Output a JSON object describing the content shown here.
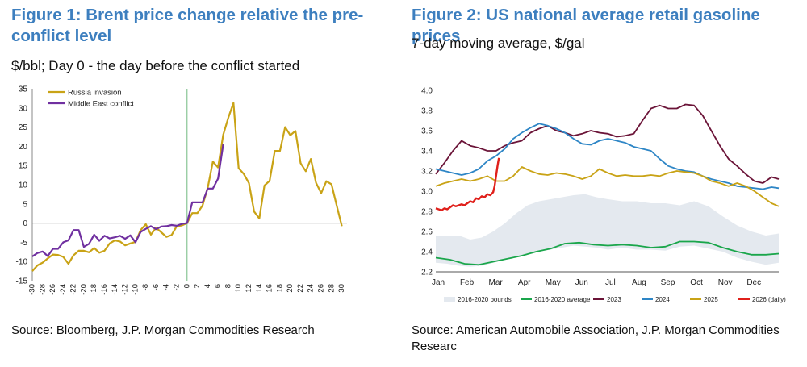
{
  "figure1": {
    "title": "Figure 1: Brent price change relative the pre-conflict level",
    "subtitle": "$/bbl; Day 0 - the day before the conflict started",
    "source": "Source: Bloomberg, J.P. Morgan Commodities Research"
  },
  "figure2": {
    "title": "Figure 2: US national average retail gasoline prices",
    "subtitle": "7-day moving average, $/gal",
    "source": "Source: American Automobile Association, J.P. Morgan Commodities Researc"
  },
  "colors": {
    "russia": "#c9a316",
    "mideast": "#7030a0",
    "bounds": "#e4e9ef",
    "avg": "#1aa64b",
    "y2023": "#6b1438",
    "y2024": "#2e86c6",
    "y2025": "#c9a316",
    "y2026": "#e0201b",
    "vline": "#70b880"
  },
  "chart_data": [
    {
      "type": "line",
      "title": "Figure 1: Brent price change relative the pre-conflict level",
      "ylabel": "$/bbl",
      "xlim": [
        -30,
        31
      ],
      "ylim": [
        -15,
        35
      ],
      "yticks": [
        -15,
        -10,
        -5,
        0,
        5,
        10,
        15,
        20,
        25,
        30,
        35
      ],
      "xticks": [
        -30,
        -28,
        -26,
        -24,
        -22,
        -20,
        -18,
        -16,
        -14,
        -12,
        -10,
        -8,
        -6,
        -4,
        -2,
        0,
        2,
        4,
        6,
        8,
        10,
        12,
        14,
        16,
        18,
        20,
        22,
        24,
        26,
        28,
        30
      ],
      "legend_position": "top-left",
      "series": [
        {
          "name": "Russia invasion",
          "x": [
            -30,
            -29,
            -28,
            -27,
            -26,
            -25,
            -24,
            -23,
            -22,
            -21,
            -20,
            -19,
            -18,
            -17,
            -16,
            -15,
            -14,
            -13,
            -12,
            -11,
            -10,
            -9,
            -8,
            -7,
            -6,
            -5,
            -4,
            -3,
            -2,
            -1,
            0,
            1,
            2,
            3,
            4,
            5,
            6,
            7,
            8,
            9,
            10,
            11,
            12,
            13,
            14,
            15,
            16,
            17,
            18,
            19,
            20,
            21,
            22,
            23,
            24,
            25,
            26,
            27,
            28,
            29,
            30
          ],
          "values": [
            -12.5,
            -11,
            -10.3,
            -9.2,
            -8.2,
            -8.3,
            -8.8,
            -10.6,
            -8.4,
            -7.2,
            -7.2,
            -7.6,
            -6.5,
            -7.7,
            -7.2,
            -5.3,
            -4.5,
            -4.8,
            -5.8,
            -5.3,
            -4.9,
            -1.8,
            -0.3,
            -3.0,
            -1.2,
            -2.4,
            -3.6,
            -3.1,
            -0.8,
            -0.6,
            0,
            2.6,
            2.6,
            4.6,
            9.2,
            16.0,
            14.5,
            23.0,
            27.5,
            31.3,
            14.3,
            12.8,
            10.4,
            3.0,
            1.2,
            9.8,
            11.0,
            18.8,
            18.8,
            25.0,
            22.9,
            24.0,
            15.6,
            13.5,
            16.7,
            10.5,
            7.8,
            10.9,
            10.1,
            4.6,
            -0.8
          ]
        },
        {
          "name": "Middle East conflict",
          "x": [
            -30,
            -29,
            -28,
            -27,
            -26,
            -25,
            -24,
            -23,
            -22,
            -21,
            -20,
            -19,
            -18,
            -17,
            -16,
            -15,
            -14,
            -13,
            -12,
            -11,
            -10,
            -9,
            -8,
            -7,
            -6,
            -5,
            -4,
            -3,
            -2,
            -1,
            0,
            1,
            2,
            3,
            4,
            5,
            6,
            7
          ],
          "values": [
            -8.7,
            -7.8,
            -7.4,
            -8.6,
            -6.7,
            -6.7,
            -5.0,
            -4.5,
            -1.8,
            -1.8,
            -6.2,
            -5.4,
            -3.0,
            -4.6,
            -3.3,
            -4.0,
            -3.7,
            -3.3,
            -4.1,
            -3.2,
            -5.0,
            -2.3,
            -1.5,
            -0.8,
            -1.6,
            -0.9,
            -0.8,
            -0.5,
            -0.7,
            -0.2,
            0,
            5.4,
            5.4,
            5.4,
            9.0,
            9.0,
            11.6,
            20.5
          ]
        }
      ]
    },
    {
      "type": "line",
      "title": "Figure 2: US national average retail gasoline prices",
      "ylabel": "$/gal",
      "categories": [
        "Jan",
        "Feb",
        "Mar",
        "Apr",
        "May",
        "Jun",
        "Jul",
        "Aug",
        "Sep",
        "Oct",
        "Nov",
        "Dec"
      ],
      "ylim": [
        2.2,
        4.0
      ],
      "yticks": [
        2.2,
        2.4,
        2.6,
        2.8,
        3.0,
        3.2,
        3.4,
        3.6,
        3.8,
        4.0
      ],
      "legend_position": "bottom",
      "bounds": {
        "name": "2016-2020 bounds",
        "x": [
          0,
          0.4,
          0.8,
          1.2,
          1.6,
          2.0,
          2.4,
          2.8,
          3.2,
          3.6,
          4.0,
          4.4,
          4.8,
          5.2,
          5.6,
          6.0,
          6.5,
          7.0,
          7.5,
          8.0,
          8.5,
          9.0,
          9.5,
          10.0,
          10.5,
          11.0,
          11.5,
          11.95
        ],
        "upper": [
          2.56,
          2.56,
          2.56,
          2.52,
          2.54,
          2.6,
          2.68,
          2.78,
          2.86,
          2.9,
          2.92,
          2.94,
          2.96,
          2.97,
          2.94,
          2.92,
          2.9,
          2.9,
          2.88,
          2.88,
          2.86,
          2.9,
          2.85,
          2.75,
          2.66,
          2.6,
          2.56,
          2.58
        ],
        "lower": [
          2.29,
          2.28,
          2.26,
          2.25,
          2.26,
          2.29,
          2.32,
          2.35,
          2.38,
          2.4,
          2.42,
          2.44,
          2.46,
          2.45,
          2.44,
          2.42,
          2.44,
          2.42,
          2.42,
          2.41,
          2.45,
          2.46,
          2.43,
          2.4,
          2.34,
          2.3,
          2.27,
          2.29
        ]
      },
      "series": [
        {
          "name": "2016-2020 average",
          "x": [
            0,
            0.5,
            1.0,
            1.5,
            2.0,
            2.5,
            3.0,
            3.5,
            4.0,
            4.5,
            5.0,
            5.5,
            6.0,
            6.5,
            7.0,
            7.5,
            8.0,
            8.5,
            9.0,
            9.5,
            10.0,
            10.5,
            11.0,
            11.5,
            11.95
          ],
          "values": [
            2.34,
            2.32,
            2.28,
            2.27,
            2.3,
            2.33,
            2.36,
            2.4,
            2.43,
            2.48,
            2.49,
            2.47,
            2.46,
            2.47,
            2.46,
            2.44,
            2.45,
            2.5,
            2.5,
            2.49,
            2.44,
            2.4,
            2.37,
            2.37,
            2.38
          ]
        },
        {
          "name": "2023",
          "x": [
            0,
            0.3,
            0.6,
            0.9,
            1.2,
            1.5,
            1.8,
            2.1,
            2.4,
            2.7,
            3.0,
            3.3,
            3.6,
            3.9,
            4.2,
            4.5,
            4.8,
            5.1,
            5.4,
            5.7,
            6.0,
            6.3,
            6.6,
            6.9,
            7.2,
            7.5,
            7.8,
            8.1,
            8.4,
            8.7,
            9.0,
            9.3,
            9.6,
            9.9,
            10.2,
            10.5,
            10.8,
            11.1,
            11.4,
            11.7,
            11.95
          ],
          "values": [
            3.17,
            3.28,
            3.4,
            3.5,
            3.45,
            3.43,
            3.4,
            3.4,
            3.45,
            3.48,
            3.5,
            3.58,
            3.62,
            3.65,
            3.6,
            3.58,
            3.55,
            3.57,
            3.6,
            3.58,
            3.57,
            3.54,
            3.55,
            3.57,
            3.7,
            3.82,
            3.85,
            3.82,
            3.82,
            3.86,
            3.85,
            3.75,
            3.6,
            3.45,
            3.32,
            3.25,
            3.17,
            3.1,
            3.08,
            3.14,
            3.12
          ]
        },
        {
          "name": "2024",
          "x": [
            0,
            0.3,
            0.6,
            0.9,
            1.2,
            1.5,
            1.8,
            2.1,
            2.4,
            2.7,
            3.0,
            3.3,
            3.6,
            3.9,
            4.2,
            4.5,
            4.8,
            5.1,
            5.4,
            5.7,
            6.0,
            6.3,
            6.6,
            6.9,
            7.2,
            7.5,
            7.8,
            8.1,
            8.4,
            8.7,
            9.0,
            9.3,
            9.6,
            9.9,
            10.2,
            10.5,
            10.8,
            11.1,
            11.4,
            11.7,
            11.95
          ],
          "values": [
            3.22,
            3.2,
            3.18,
            3.16,
            3.18,
            3.22,
            3.3,
            3.35,
            3.42,
            3.52,
            3.58,
            3.63,
            3.67,
            3.65,
            3.62,
            3.58,
            3.52,
            3.47,
            3.46,
            3.5,
            3.52,
            3.5,
            3.48,
            3.44,
            3.42,
            3.4,
            3.32,
            3.25,
            3.22,
            3.2,
            3.19,
            3.15,
            3.12,
            3.1,
            3.08,
            3.05,
            3.04,
            3.03,
            3.02,
            3.04,
            3.03
          ]
        },
        {
          "name": "2025",
          "x": [
            0,
            0.3,
            0.6,
            0.9,
            1.2,
            1.5,
            1.8,
            2.1,
            2.4,
            2.7,
            3.0,
            3.3,
            3.6,
            3.9,
            4.2,
            4.5,
            4.8,
            5.1,
            5.4,
            5.7,
            6.0,
            6.3,
            6.6,
            6.9,
            7.2,
            7.5,
            7.8,
            8.1,
            8.4,
            8.7,
            9.0,
            9.3,
            9.6,
            9.9,
            10.2,
            10.5,
            10.8,
            11.1,
            11.4,
            11.7,
            11.95
          ],
          "values": [
            3.05,
            3.08,
            3.1,
            3.12,
            3.1,
            3.12,
            3.15,
            3.1,
            3.1,
            3.15,
            3.24,
            3.2,
            3.17,
            3.16,
            3.18,
            3.17,
            3.15,
            3.12,
            3.15,
            3.22,
            3.18,
            3.15,
            3.16,
            3.15,
            3.15,
            3.16,
            3.15,
            3.18,
            3.2,
            3.19,
            3.18,
            3.15,
            3.1,
            3.08,
            3.05,
            3.08,
            3.05,
            3.0,
            2.94,
            2.88,
            2.85
          ]
        },
        {
          "name": "2026 (daily)",
          "x": [
            0,
            0.1,
            0.2,
            0.3,
            0.4,
            0.5,
            0.6,
            0.7,
            0.8,
            0.9,
            1.0,
            1.1,
            1.2,
            1.3,
            1.4,
            1.5,
            1.6,
            1.7,
            1.8,
            1.9,
            2.0,
            2.05,
            2.1,
            2.15,
            2.2
          ],
          "values": [
            2.83,
            2.82,
            2.81,
            2.83,
            2.82,
            2.84,
            2.86,
            2.85,
            2.86,
            2.87,
            2.86,
            2.88,
            2.9,
            2.89,
            2.93,
            2.92,
            2.95,
            2.94,
            2.97,
            2.96,
            2.99,
            3.05,
            3.15,
            3.25,
            3.33
          ]
        }
      ]
    }
  ]
}
